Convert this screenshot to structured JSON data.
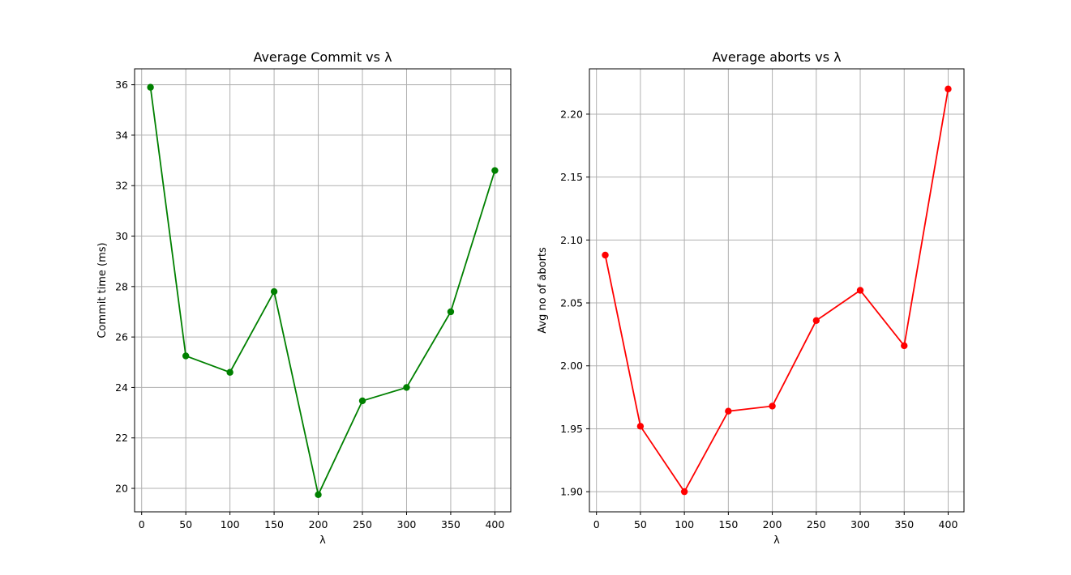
{
  "chart_data": [
    {
      "type": "line",
      "title": "Average Commit vs λ",
      "xlabel": "λ",
      "ylabel": "Commit time (ms)",
      "x": [
        10,
        50,
        100,
        150,
        200,
        250,
        300,
        350,
        400
      ],
      "series": [
        {
          "values": [
            35.9,
            25.25,
            24.6,
            27.8,
            19.75,
            23.47,
            24.0,
            27.0,
            32.6
          ],
          "color": "#008000"
        }
      ],
      "xlim": [
        -8,
        418
      ],
      "ylim": [
        19.07,
        36.63
      ],
      "xticks": [
        0,
        50,
        100,
        150,
        200,
        250,
        300,
        350,
        400
      ],
      "xtick_labels": [
        "0",
        "50",
        "100",
        "150",
        "200",
        "250",
        "300",
        "350",
        "400"
      ],
      "yticks": [
        20,
        22,
        24,
        26,
        28,
        30,
        32,
        34,
        36
      ],
      "ytick_labels": [
        "20",
        "22",
        "24",
        "26",
        "28",
        "30",
        "32",
        "34",
        "36"
      ],
      "grid": true
    },
    {
      "type": "line",
      "title": "Average aborts vs λ",
      "xlabel": "λ",
      "ylabel": "Avg no of aborts",
      "x": [
        10,
        50,
        100,
        150,
        200,
        250,
        300,
        350,
        400
      ],
      "series": [
        {
          "values": [
            2.088,
            1.952,
            1.9,
            1.964,
            1.968,
            2.036,
            2.06,
            2.016,
            2.22
          ],
          "color": "#ff0000"
        }
      ],
      "xlim": [
        -8,
        418
      ],
      "ylim": [
        1.884,
        2.236
      ],
      "xticks": [
        0,
        50,
        100,
        150,
        200,
        250,
        300,
        350,
        400
      ],
      "xtick_labels": [
        "0",
        "50",
        "100",
        "150",
        "200",
        "250",
        "300",
        "350",
        "400"
      ],
      "yticks": [
        1.9,
        1.95,
        2.0,
        2.05,
        2.1,
        2.15,
        2.2
      ],
      "ytick_labels": [
        "1.90",
        "1.95",
        "2.00",
        "2.05",
        "2.10",
        "2.15",
        "2.20"
      ],
      "grid": true
    }
  ]
}
